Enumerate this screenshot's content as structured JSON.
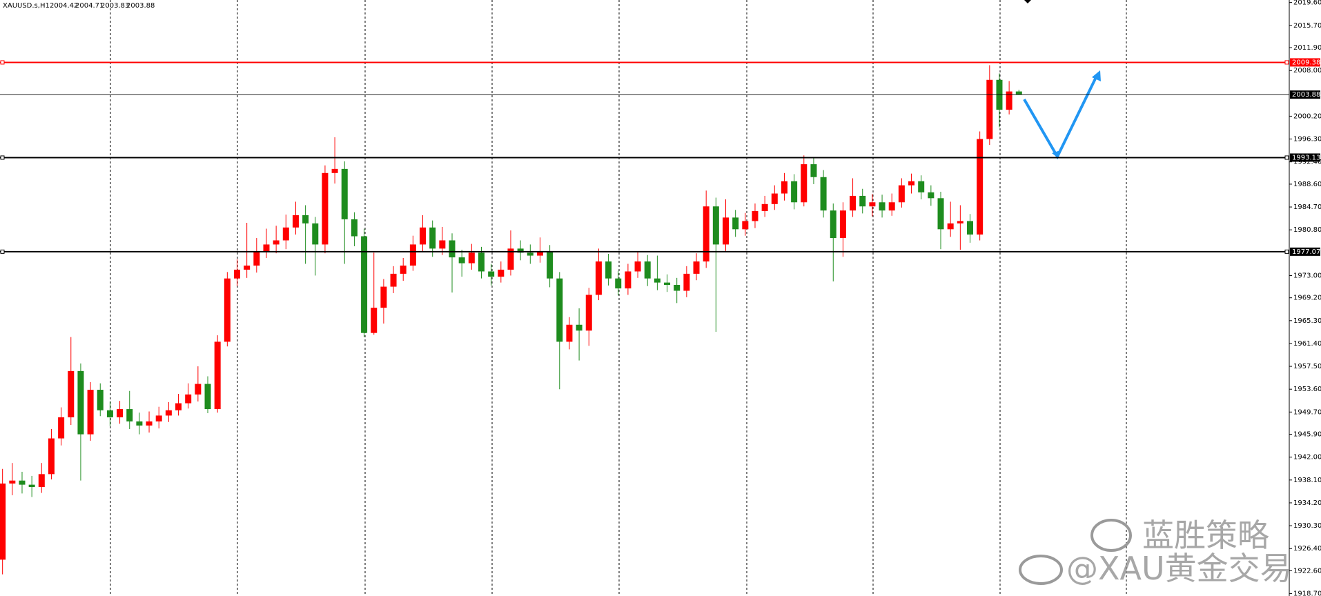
{
  "chart_data": {
    "type": "candlestick",
    "title": "XAUUSD.s,H1",
    "up_color": "#ff0000",
    "down_color": "#1e8c1e",
    "ylim": [
      1918.3,
      2020.03
    ],
    "yticks": [
      {
        "value": 2019.6,
        "label": "2019.60"
      },
      {
        "value": 2015.7,
        "label": "2015.70"
      },
      {
        "value": 2011.9,
        "label": "2011.90"
      },
      {
        "value": 2008.0,
        "label": "2008.00"
      },
      {
        "value": 2000.2,
        "label": "2000.20"
      },
      {
        "value": 1996.3,
        "label": "1996.30"
      },
      {
        "value": 1992.4,
        "label": "1992.40"
      },
      {
        "value": 1988.6,
        "label": "1988.60"
      },
      {
        "value": 1984.7,
        "label": "1984.70"
      },
      {
        "value": 1980.8,
        "label": "1980.80"
      },
      {
        "value": 1973.0,
        "label": "1973.00"
      },
      {
        "value": 1969.2,
        "label": "1969.20"
      },
      {
        "value": 1965.3,
        "label": "1965.30"
      },
      {
        "value": 1961.4,
        "label": "1961.40"
      },
      {
        "value": 1957.5,
        "label": "1957.50"
      },
      {
        "value": 1953.6,
        "label": "1953.60"
      },
      {
        "value": 1949.7,
        "label": "1949.70"
      },
      {
        "value": 1945.9,
        "label": "1945.90"
      },
      {
        "value": 1942.0,
        "label": "1942.00"
      },
      {
        "value": 1938.1,
        "label": "1938.10"
      },
      {
        "value": 1934.2,
        "label": "1934.20"
      },
      {
        "value": 1930.3,
        "label": "1930.30"
      },
      {
        "value": 1926.4,
        "label": "1926.40"
      },
      {
        "value": 1922.6,
        "label": "1922.60"
      },
      {
        "value": 1918.7,
        "label": "1918.70"
      }
    ],
    "levels": [
      {
        "value": 2009.38,
        "color": "#ff0000"
      },
      {
        "value": 1993.13,
        "color": "#000000"
      },
      {
        "value": 1977.07,
        "color": "#000000"
      }
    ],
    "open": [
      1924.5,
      1937.5,
      1938.0,
      1937.3,
      1936.9,
      1939.1,
      1945.2,
      1948.8,
      1956.7,
      1945.9,
      1953.5,
      1950.0,
      1948.8,
      1950.2,
      1948.1,
      1947.4,
      1948.1,
      1949.1,
      1950.0,
      1951.2,
      1952.7,
      1954.5,
      1950.2,
      1961.7,
      1972.5,
      1974.0,
      1974.7,
      1977.1,
      1978.3,
      1979.0,
      1981.2,
      1983.3,
      1981.9,
      1978.3,
      1990.5,
      1991.2,
      1982.6,
      1979.7,
      1963.2,
      1967.5,
      1971.1,
      1973.3,
      1974.7,
      1978.3,
      1981.2,
      1977.6,
      1979.0,
      1976.1,
      1975.1,
      1976.9,
      1973.7,
      1972.8,
      1974.0,
      1977.6,
      1976.9,
      1976.4,
      1977.1,
      1972.5,
      1961.7,
      1964.6,
      1963.6,
      1969.7,
      1975.4,
      1972.5,
      1970.8,
      1973.7,
      1975.4,
      1972.5,
      1971.8,
      1971.4,
      1970.4,
      1973.3,
      1975.4,
      1984.8,
      1978.3,
      1982.9,
      1980.9,
      1982.3,
      1984.0,
      1985.2,
      1987.0,
      1989.1,
      1985.5,
      1992.0,
      1989.8,
      1984.1,
      1979.4,
      1984.1,
      1986.6,
      1984.8,
      1985.5,
      1984.1,
      1985.5,
      1988.4,
      1989.1,
      1987.2,
      1986.2,
      1980.9,
      1981.9,
      1982.3,
      1980.0,
      1996.3,
      2006.4,
      2001.3,
      2004.42
    ],
    "high": [
      1940.0,
      1941.0,
      1939.5,
      1938.8,
      1941.0,
      1946.8,
      1950.5,
      1962.5,
      1958.0,
      1954.8,
      1954.6,
      1951.5,
      1951.6,
      1953.3,
      1949.6,
      1949.8,
      1950.6,
      1951.4,
      1952.8,
      1954.6,
      1957.5,
      1955.8,
      1962.8,
      1973.6,
      1975.8,
      1982.0,
      1979.4,
      1981.0,
      1981.5,
      1983.4,
      1985.6,
      1985.0,
      1983.0,
      1991.8,
      1996.6,
      1992.5,
      1983.8,
      1981.0,
      1976.9,
      1972.4,
      1974.6,
      1976.0,
      1979.8,
      1983.3,
      1982.4,
      1981.3,
      1980.2,
      1977.4,
      1978.4,
      1977.9,
      1975.0,
      1975.4,
      1980.7,
      1979.0,
      1978.3,
      1979.5,
      1978.2,
      1973.6,
      1965.9,
      1967.4,
      1970.9,
      1977.6,
      1976.7,
      1973.8,
      1975.0,
      1977.0,
      1976.5,
      1976.4,
      1973.2,
      1972.6,
      1974.6,
      1976.8,
      1987.5,
      1986.3,
      1986.0,
      1984.2,
      1983.7,
      1985.3,
      1986.6,
      1988.4,
      1990.5,
      1990.3,
      1993.5,
      1993.2,
      1991.0,
      1985.3,
      1985.5,
      1989.6,
      1987.8,
      1986.9,
      1986.8,
      1987.0,
      1989.6,
      1990.4,
      1990.1,
      1988.4,
      1987.3,
      1985.6,
      1985.0,
      1983.5,
      1997.6,
      2008.9,
      2007.5,
      2006.2,
      2004.71
    ],
    "low": [
      1922.0,
      1935.5,
      1935.8,
      1935.2,
      1935.9,
      1938.2,
      1944.0,
      1947.5,
      1938.0,
      1944.8,
      1949.0,
      1947.3,
      1947.7,
      1946.8,
      1945.9,
      1946.2,
      1946.9,
      1948.0,
      1949.1,
      1950.3,
      1951.5,
      1949.5,
      1949.6,
      1960.9,
      1971.2,
      1972.6,
      1973.5,
      1976.0,
      1976.8,
      1977.5,
      1980.0,
      1975.0,
      1973.0,
      1976.8,
      1988.7,
      1975.0,
      1978.0,
      1962.5,
      1962.9,
      1964.8,
      1970.0,
      1972.1,
      1973.8,
      1977.0,
      1976.2,
      1976.5,
      1970.1,
      1972.8,
      1974.0,
      1972.5,
      1971.3,
      1971.8,
      1973.0,
      1975.6,
      1975.0,
      1975.2,
      1971.0,
      1953.6,
      1960.4,
      1958.5,
      1961.0,
      1968.8,
      1971.3,
      1969.6,
      1969.7,
      1972.6,
      1971.2,
      1970.5,
      1970.2,
      1968.3,
      1969.3,
      1972.2,
      1974.3,
      1963.4,
      1977.2,
      1979.6,
      1979.8,
      1981.1,
      1983.0,
      1984.2,
      1985.8,
      1984.3,
      1984.8,
      1988.6,
      1982.9,
      1972.0,
      1976.2,
      1983.0,
      1983.6,
      1983.1,
      1982.9,
      1983.2,
      1984.6,
      1987.0,
      1986.0,
      1984.9,
      1977.5,
      1979.6,
      1977.4,
      1978.6,
      1979.0,
      1995.3,
      1998.3,
      2000.5,
      2003.83
    ],
    "close": [
      1937.5,
      1938.0,
      1937.3,
      1936.9,
      1939.1,
      1945.2,
      1948.8,
      1956.7,
      1945.9,
      1953.5,
      1950.0,
      1948.8,
      1950.2,
      1948.1,
      1947.4,
      1948.1,
      1949.1,
      1950.0,
      1951.2,
      1952.7,
      1954.5,
      1950.2,
      1961.7,
      1972.5,
      1974.0,
      1974.7,
      1977.1,
      1978.3,
      1979.0,
      1981.2,
      1983.3,
      1981.9,
      1978.3,
      1990.5,
      1991.2,
      1982.6,
      1979.7,
      1963.2,
      1967.5,
      1971.1,
      1973.3,
      1974.7,
      1978.3,
      1981.2,
      1977.6,
      1979.0,
      1976.1,
      1975.1,
      1976.9,
      1973.7,
      1972.8,
      1974.0,
      1977.6,
      1976.9,
      1976.4,
      1977.1,
      1972.5,
      1961.7,
      1964.6,
      1963.6,
      1969.7,
      1975.4,
      1972.5,
      1970.8,
      1973.7,
      1975.4,
      1972.5,
      1971.8,
      1971.4,
      1970.4,
      1973.3,
      1975.4,
      1984.8,
      1978.3,
      1982.9,
      1980.9,
      1982.3,
      1984.0,
      1985.2,
      1987.0,
      1989.1,
      1985.5,
      1992.0,
      1989.8,
      1984.1,
      1979.4,
      1984.1,
      1986.6,
      1984.8,
      1985.5,
      1984.1,
      1985.5,
      1988.4,
      1989.1,
      1987.2,
      1986.2,
      1980.9,
      1981.9,
      1982.3,
      1980.0,
      1996.3,
      2006.4,
      2001.3,
      2004.42,
      2003.88
    ],
    "watermark": {
      "line1": "蓝胜策略",
      "line2": "@XAU黄金交易"
    }
  }
}
